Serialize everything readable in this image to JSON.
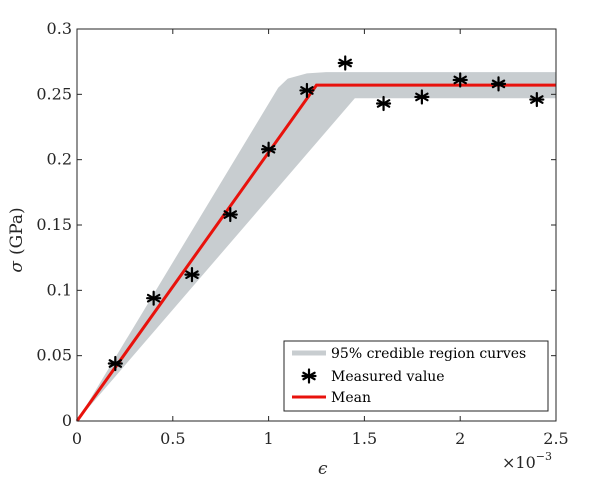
{
  "chart_data": {
    "type": "scatter",
    "title": "",
    "xlabel": "ϵ",
    "ylabel_sigma": "σ",
    "ylabel_unit": "(GPa)",
    "x_exponent": "×10",
    "x_exponent_power": "−3",
    "xlim": [
      0,
      2.5
    ],
    "ylim": [
      0,
      0.3
    ],
    "x_unit_scale": 0.001,
    "xticks": [
      0,
      0.5,
      1,
      1.5,
      2,
      2.5
    ],
    "xtick_labels": [
      "0",
      "0.5",
      "1",
      "1.5",
      "2",
      "2.5"
    ],
    "yticks": [
      0,
      0.05,
      0.1,
      0.15,
      0.2,
      0.25,
      0.3
    ],
    "ytick_labels": [
      "0",
      "0.05",
      "0.1",
      "0.15",
      "0.2",
      "0.25",
      "0.3"
    ],
    "grid": false,
    "legend_position": "bottom-right",
    "series": [
      {
        "name": "95% credible region curves",
        "kind": "band",
        "color": "#c8cdd0",
        "upper": [
          [
            0,
            0
          ],
          [
            1.05,
            0.255
          ],
          [
            1.1,
            0.262
          ],
          [
            1.2,
            0.266
          ],
          [
            1.3,
            0.267
          ],
          [
            2.5,
            0.267
          ]
        ],
        "lower": [
          [
            0,
            0
          ],
          [
            1.45,
            0.247
          ],
          [
            2.5,
            0.247
          ]
        ]
      },
      {
        "name": "Measured value",
        "kind": "markers",
        "color": "#000000",
        "x": [
          0.2,
          0.4,
          0.6,
          0.8,
          1.0,
          1.2,
          1.4,
          1.6,
          1.8,
          2.0,
          2.2,
          2.4
        ],
        "y": [
          0.044,
          0.094,
          0.112,
          0.158,
          0.208,
          0.253,
          0.274,
          0.243,
          0.248,
          0.261,
          0.258,
          0.246
        ]
      },
      {
        "name": "Mean",
        "kind": "line",
        "color": "#e8120c",
        "x": [
          0,
          1.25,
          2.5
        ],
        "y": [
          0,
          0.257,
          0.257
        ]
      }
    ]
  }
}
